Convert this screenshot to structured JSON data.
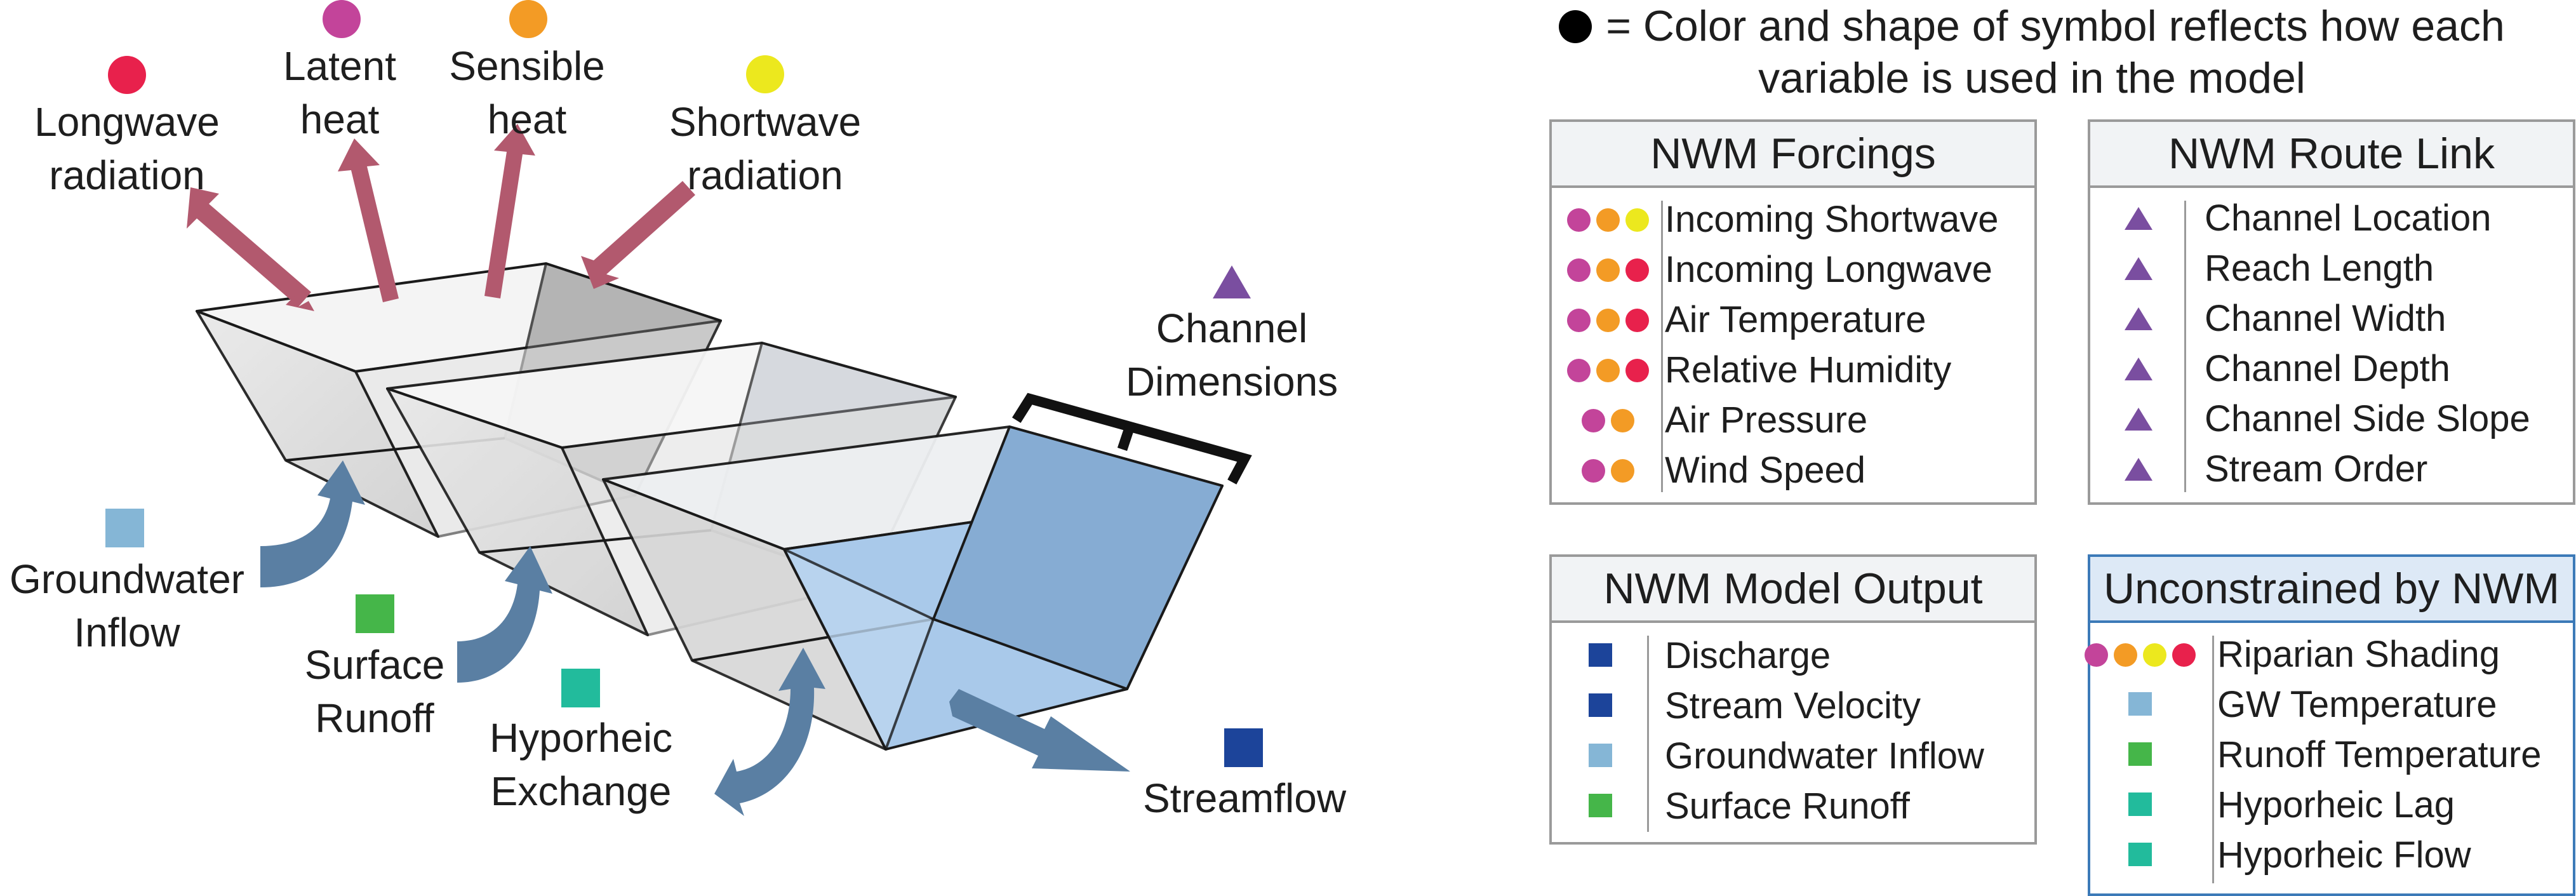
{
  "diagram": {
    "labels": {
      "longwave": "Longwave\nradiation",
      "latent": "Latent\nheat",
      "sensible": "Sensible\nheat",
      "shortwave": "Shortwave\nradiation",
      "channel_dimensions": "Channel\nDimensions",
      "groundwater": "Groundwater\nInflow",
      "surface_runoff": "Surface\nRunoff",
      "hyporheic": "Hyporheic\nExchange",
      "streamflow": "Streamflow"
    },
    "colors": {
      "longwave": "#e8214c",
      "latent": "#c3449a",
      "sensible": "#f39b25",
      "shortwave": "#ece81e",
      "channel": "#7a4ea0",
      "groundwater": "#85b6d6",
      "surface_runoff": "#45b649",
      "hyporheic": "#22bb9c",
      "streamflow": "#1c449a",
      "energy_arrow": "#b2596e",
      "water_arrow": "#5a7fa3"
    }
  },
  "legend_note": "= Color and shape of symbol reflects how each variable is used in the model",
  "panels": {
    "forcings": {
      "title": "NWM Forcings",
      "rows": [
        {
          "label": "Incoming Shortwave",
          "symbols": [
            {
              "shape": "circle",
              "color": "#c3449a"
            },
            {
              "shape": "circle",
              "color": "#f39b25"
            },
            {
              "shape": "circle",
              "color": "#ece81e"
            }
          ]
        },
        {
          "label": "Incoming Longwave",
          "symbols": [
            {
              "shape": "circle",
              "color": "#c3449a"
            },
            {
              "shape": "circle",
              "color": "#f39b25"
            },
            {
              "shape": "circle",
              "color": "#e8214c"
            }
          ]
        },
        {
          "label": "Air Temperature",
          "symbols": [
            {
              "shape": "circle",
              "color": "#c3449a"
            },
            {
              "shape": "circle",
              "color": "#f39b25"
            },
            {
              "shape": "circle",
              "color": "#e8214c"
            }
          ]
        },
        {
          "label": "Relative Humidity",
          "symbols": [
            {
              "shape": "circle",
              "color": "#c3449a"
            },
            {
              "shape": "circle",
              "color": "#f39b25"
            },
            {
              "shape": "circle",
              "color": "#e8214c"
            }
          ]
        },
        {
          "label": "Air Pressure",
          "symbols": [
            {
              "shape": "circle",
              "color": "#c3449a"
            },
            {
              "shape": "circle",
              "color": "#f39b25"
            }
          ]
        },
        {
          "label": "Wind Speed",
          "symbols": [
            {
              "shape": "circle",
              "color": "#c3449a"
            },
            {
              "shape": "circle",
              "color": "#f39b25"
            }
          ]
        }
      ]
    },
    "route_link": {
      "title": "NWM Route Link",
      "rows": [
        {
          "label": "Channel Location",
          "symbols": [
            {
              "shape": "triangle",
              "color": "#7a4ea0"
            }
          ]
        },
        {
          "label": "Reach Length",
          "symbols": [
            {
              "shape": "triangle",
              "color": "#7a4ea0"
            }
          ]
        },
        {
          "label": "Channel Width",
          "symbols": [
            {
              "shape": "triangle",
              "color": "#7a4ea0"
            }
          ]
        },
        {
          "label": "Channel Depth",
          "symbols": [
            {
              "shape": "triangle",
              "color": "#7a4ea0"
            }
          ]
        },
        {
          "label": "Channel Side Slope",
          "symbols": [
            {
              "shape": "triangle",
              "color": "#7a4ea0"
            }
          ]
        },
        {
          "label": "Stream Order",
          "symbols": [
            {
              "shape": "triangle",
              "color": "#7a4ea0"
            }
          ]
        }
      ]
    },
    "model_output": {
      "title": "NWM Model Output",
      "rows": [
        {
          "label": "Discharge",
          "symbols": [
            {
              "shape": "square",
              "color": "#1c449a"
            }
          ]
        },
        {
          "label": "Stream Velocity",
          "symbols": [
            {
              "shape": "square",
              "color": "#1c449a"
            }
          ]
        },
        {
          "label": "Groundwater Inflow",
          "symbols": [
            {
              "shape": "square",
              "color": "#85b6d6"
            }
          ]
        },
        {
          "label": "Surface Runoff",
          "symbols": [
            {
              "shape": "square",
              "color": "#45b649"
            }
          ]
        }
      ]
    },
    "unconstrained": {
      "title": "Unconstrained by NWM",
      "rows": [
        {
          "label": "Riparian Shading",
          "symbols": [
            {
              "shape": "circle",
              "color": "#c3449a"
            },
            {
              "shape": "circle",
              "color": "#f39b25"
            },
            {
              "shape": "circle",
              "color": "#ece81e"
            },
            {
              "shape": "circle",
              "color": "#e8214c"
            }
          ]
        },
        {
          "label": "GW Temperature",
          "symbols": [
            {
              "shape": "square",
              "color": "#85b6d6"
            }
          ]
        },
        {
          "label": "Runoff Temperature",
          "symbols": [
            {
              "shape": "square",
              "color": "#45b649"
            }
          ]
        },
        {
          "label": "Hyporheic Lag",
          "symbols": [
            {
              "shape": "square",
              "color": "#22bb9c"
            }
          ]
        },
        {
          "label": "Hyporheic Flow",
          "symbols": [
            {
              "shape": "square",
              "color": "#22bb9c"
            }
          ]
        }
      ]
    }
  }
}
